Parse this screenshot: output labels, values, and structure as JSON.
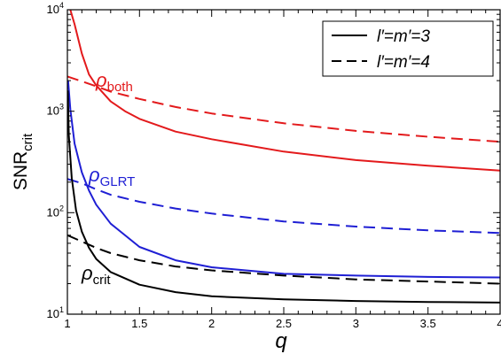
{
  "chart_data": {
    "type": "line",
    "xlabel": "q",
    "ylabel": {
      "main": "SNR",
      "sub": "crit"
    },
    "xlim": [
      1,
      4
    ],
    "ylim": [
      10,
      10000
    ],
    "yscale": "log",
    "x_ticks": [
      {
        "value": 1,
        "label": "1"
      },
      {
        "value": 1.5,
        "label": "1.5"
      },
      {
        "value": 2,
        "label": "2"
      },
      {
        "value": 2.5,
        "label": "2.5"
      },
      {
        "value": 3,
        "label": "3"
      },
      {
        "value": 3.5,
        "label": "3.5"
      },
      {
        "value": 4,
        "label": "4"
      }
    ],
    "y_ticks": [
      {
        "value": 10,
        "base": "10",
        "exp": "1"
      },
      {
        "value": 100,
        "base": "10",
        "exp": "2"
      },
      {
        "value": 1000,
        "base": "10",
        "exp": "3"
      },
      {
        "value": 10000,
        "base": "10",
        "exp": "4"
      }
    ],
    "grid": false,
    "legend": {
      "position": "top-right",
      "entries": [
        {
          "label": "l′=m′=3",
          "style": "solid",
          "color": "#000000"
        },
        {
          "label": "l′=m′=4",
          "style": "dashed",
          "color": "#000000"
        }
      ]
    },
    "series": [
      {
        "group": "both",
        "style": "solid",
        "color": "#e31a1c",
        "x": [
          1.02,
          1.05,
          1.1,
          1.15,
          1.2,
          1.3,
          1.4,
          1.5,
          1.75,
          2,
          2.5,
          3,
          3.5,
          4
        ],
        "y": [
          10000,
          7200,
          3700,
          2300,
          1800,
          1250,
          1000,
          840,
          630,
          530,
          400,
          330,
          290,
          260
        ]
      },
      {
        "group": "both",
        "style": "dashed",
        "color": "#e31a1c",
        "x": [
          1,
          1.1,
          1.2,
          1.3,
          1.5,
          1.75,
          2,
          2.5,
          3,
          3.5,
          4
        ],
        "y": [
          2200,
          1970,
          1760,
          1560,
          1320,
          1100,
          950,
          760,
          640,
          560,
          500
        ]
      },
      {
        "group": "GLRT",
        "style": "solid",
        "color": "#1f1fd4",
        "x": [
          1.005,
          1.02,
          1.05,
          1.1,
          1.15,
          1.2,
          1.3,
          1.5,
          1.75,
          2,
          2.5,
          3,
          3.5,
          4
        ],
        "y": [
          2000,
          1050,
          480,
          250,
          165,
          120,
          78,
          46,
          34,
          29,
          25,
          24,
          23.3,
          23
        ]
      },
      {
        "group": "GLRT",
        "style": "dashed",
        "color": "#1f1fd4",
        "x": [
          1,
          1.1,
          1.2,
          1.3,
          1.5,
          1.75,
          2,
          2.5,
          3,
          3.5,
          4
        ],
        "y": [
          215,
          195,
          170,
          150,
          128,
          110,
          98,
          82,
          73,
          67,
          63
        ]
      },
      {
        "group": "crit",
        "style": "solid",
        "color": "#000000",
        "x": [
          1.003,
          1.01,
          1.03,
          1.06,
          1.1,
          1.15,
          1.2,
          1.3,
          1.5,
          1.75,
          2,
          2.5,
          3,
          3.5,
          4
        ],
        "y": [
          1600,
          580,
          220,
          105,
          65,
          45,
          35,
          26,
          19.5,
          16.5,
          15,
          14,
          13.5,
          13.2,
          13
        ]
      },
      {
        "group": "crit",
        "style": "dashed",
        "color": "#000000",
        "x": [
          1,
          1.1,
          1.2,
          1.3,
          1.5,
          1.75,
          2,
          2.5,
          3,
          3.5,
          4
        ],
        "y": [
          60,
          52,
          45,
          40,
          34,
          29.5,
          27,
          24,
          22,
          21,
          20
        ]
      }
    ],
    "annotations": [
      {
        "group": "both",
        "main": "ρ",
        "sub": "both",
        "color": "#e31a1c"
      },
      {
        "group": "GLRT",
        "main": "ρ",
        "sub": "GLRT",
        "color": "#1f1fd4"
      },
      {
        "group": "crit",
        "main": "ρ",
        "sub": "crit",
        "color": "#000000"
      }
    ]
  }
}
